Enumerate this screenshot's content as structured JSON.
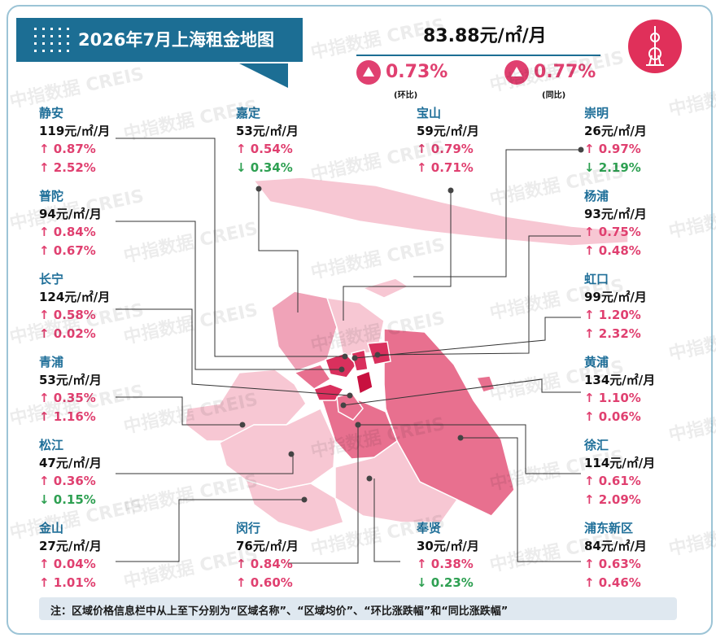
{
  "header": {
    "title": "2026年7月上海租金地图",
    "avg_price": "83.88元/㎡/月",
    "mom_value": "0.73%",
    "mom_label": "(环比)",
    "yoy_value": "0.77%",
    "yoy_label": "(同比)"
  },
  "districts": [
    {
      "name": "静安",
      "price": "119元/㎡/月",
      "mom": "0.87%",
      "mom_dir": "up",
      "yoy": "2.52%",
      "yoy_dir": "up"
    },
    {
      "name": "嘉定",
      "price": "53元/㎡/月",
      "mom": "0.54%",
      "mom_dir": "up",
      "yoy": "0.34%",
      "yoy_dir": "down"
    },
    {
      "name": "宝山",
      "price": "59元/㎡/月",
      "mom": "0.79%",
      "mom_dir": "up",
      "yoy": "0.71%",
      "yoy_dir": "up"
    },
    {
      "name": "崇明",
      "price": "26元/㎡/月",
      "mom": "0.97%",
      "mom_dir": "up",
      "yoy": "2.19%",
      "yoy_dir": "down"
    },
    {
      "name": "普陀",
      "price": "94元/㎡/月",
      "mom": "0.84%",
      "mom_dir": "up",
      "yoy": "0.67%",
      "yoy_dir": "up"
    },
    {
      "name": "杨浦",
      "price": "93元/㎡/月",
      "mom": "0.75%",
      "mom_dir": "up",
      "yoy": "0.48%",
      "yoy_dir": "up"
    },
    {
      "name": "长宁",
      "price": "124元/㎡/月",
      "mom": "0.58%",
      "mom_dir": "up",
      "yoy": "0.02%",
      "yoy_dir": "up"
    },
    {
      "name": "虹口",
      "price": "99元/㎡/月",
      "mom": "1.20%",
      "mom_dir": "up",
      "yoy": "2.32%",
      "yoy_dir": "up"
    },
    {
      "name": "青浦",
      "price": "53元/㎡/月",
      "mom": "0.35%",
      "mom_dir": "up",
      "yoy": "1.16%",
      "yoy_dir": "up"
    },
    {
      "name": "黄浦",
      "price": "134元/㎡/月",
      "mom": "1.10%",
      "mom_dir": "up",
      "yoy": "0.06%",
      "yoy_dir": "up"
    },
    {
      "name": "松江",
      "price": "47元/㎡/月",
      "mom": "0.36%",
      "mom_dir": "up",
      "yoy": "0.15%",
      "yoy_dir": "down"
    },
    {
      "name": "徐汇",
      "price": "114元/㎡/月",
      "mom": "0.61%",
      "mom_dir": "up",
      "yoy": "2.09%",
      "yoy_dir": "up"
    },
    {
      "name": "金山",
      "price": "27元/㎡/月",
      "mom": "0.04%",
      "mom_dir": "up",
      "yoy": "1.01%",
      "yoy_dir": "up"
    },
    {
      "name": "闵行",
      "price": "76元/㎡/月",
      "mom": "0.84%",
      "mom_dir": "up",
      "yoy": "0.60%",
      "yoy_dir": "up"
    },
    {
      "name": "奉贤",
      "price": "30元/㎡/月",
      "mom": "0.38%",
      "mom_dir": "up",
      "yoy": "0.23%",
      "yoy_dir": "down"
    },
    {
      "name": "浦东新区",
      "price": "84元/㎡/月",
      "mom": "0.63%",
      "mom_dir": "up",
      "yoy": "0.46%",
      "yoy_dir": "up"
    }
  ],
  "arrows": {
    "up": "↑",
    "down": "↓"
  },
  "note": "注：区域价格信息栏中从上至下分别为“区域名称”、“区域均价”、“环比涨跌幅”和“同比涨跌幅”",
  "watermark": [
    "中指数据",
    "CREIS"
  ],
  "colors": {
    "banner": "#1c6e94",
    "accent": "#e04070",
    "up": "#e04070",
    "down": "#2ea052",
    "map_light": "#f7c7d3",
    "map_mid": "#f0a3b8",
    "map_dark": "#e8708f",
    "map_core": "#d9305d",
    "map_deepest": "#c8103f"
  },
  "icons": {
    "logo": "oriental-pearl-tower-icon",
    "change": "triangle-up-icon"
  }
}
